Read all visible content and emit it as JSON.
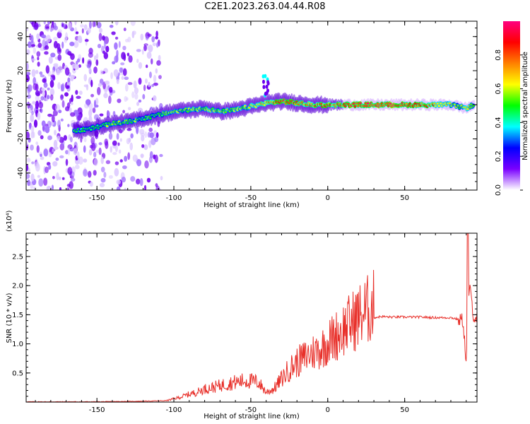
{
  "page": {
    "title": "C2E1.2023.263.04.44.R08"
  },
  "chart_data": [
    {
      "type": "heatmap",
      "xlabel": "Height of straight line (km)",
      "ylabel": "Frequency (Hz)",
      "xlim": [
        -196,
        97
      ],
      "ylim": [
        -50,
        49
      ],
      "x_ticks": [
        -150,
        -100,
        -50,
        0,
        50
      ],
      "y_ticks": [
        -40,
        -20,
        0,
        20,
        40
      ],
      "colorbar": {
        "label": "Normalized spectral amplitude",
        "range": [
          0,
          1
        ],
        "ticks": [
          0.0,
          0.2,
          0.4,
          0.6,
          0.8
        ],
        "colormap": [
          "#ffffff",
          "#7a00ff",
          "#0000ff",
          "#00ffff",
          "#00ff00",
          "#ffff00",
          "#ff8000",
          "#ff0000",
          "#ff0080"
        ]
      },
      "ridge": {
        "x": [
          -160,
          -150,
          -140,
          -130,
          -120,
          -110,
          -100,
          -90,
          -80,
          -70,
          -60,
          -50,
          -40,
          -30,
          -20,
          -10,
          0,
          10,
          20,
          30,
          40,
          50,
          60,
          70,
          80,
          85,
          90,
          95
        ],
        "frequency": [
          -15,
          -13,
          -11,
          -10,
          -8,
          -6,
          -4,
          -3,
          -2,
          -4,
          -3,
          -1,
          1,
          2,
          1,
          0,
          0,
          0,
          0,
          0,
          0,
          0,
          0,
          0,
          0,
          -1,
          -2,
          0
        ],
        "amplitude": [
          0.45,
          0.5,
          0.55,
          0.55,
          0.5,
          0.5,
          0.55,
          0.55,
          0.6,
          0.55,
          0.55,
          0.6,
          0.7,
          0.85,
          0.8,
          0.75,
          0.8,
          0.85,
          0.9,
          0.9,
          0.9,
          0.85,
          0.85,
          0.75,
          0.6,
          0.5,
          0.6,
          0.5
        ]
      }
    },
    {
      "type": "line",
      "xlabel": "Height of straight line (km)",
      "ylabel": "SNR (10 * v/v)",
      "scale_label": "(x10⁴)",
      "xlim": [
        -196,
        97
      ],
      "ylim": [
        0,
        2.9
      ],
      "x_ticks": [
        -150,
        -100,
        -50,
        0,
        50
      ],
      "y_ticks": [
        0.5,
        1.0,
        1.5,
        2.0,
        2.5
      ],
      "y_tick_labels": [
        "0.5",
        "1.0",
        "1.5",
        "2.0",
        "2.5"
      ],
      "line_color": "#e8302a",
      "series": [
        {
          "x": [
            -196,
            -150,
            -120,
            -105,
            -100,
            -95,
            -90,
            -85,
            -80,
            -75,
            -70,
            -65,
            -60,
            -55,
            -50,
            -45,
            -40,
            -35,
            -30,
            -25,
            -20,
            -15,
            -10,
            -5,
            0,
            5,
            10,
            15,
            20,
            25,
            30,
            35,
            40,
            50,
            60,
            70,
            80,
            85,
            88,
            90,
            92,
            95,
            97
          ],
          "y": [
            0.0,
            0.0,
            0.01,
            0.02,
            0.05,
            0.08,
            0.12,
            0.15,
            0.2,
            0.22,
            0.25,
            0.28,
            0.3,
            0.32,
            0.32,
            0.3,
            0.15,
            0.2,
            0.35,
            0.5,
            0.6,
            0.68,
            0.75,
            0.8,
            0.9,
            1.0,
            1.1,
            1.2,
            1.3,
            1.38,
            1.45,
            1.47,
            1.46,
            1.46,
            1.46,
            1.45,
            1.45,
            1.42,
            1.4,
            0.65,
            2.0,
            1.45,
            1.45
          ]
        }
      ]
    }
  ]
}
